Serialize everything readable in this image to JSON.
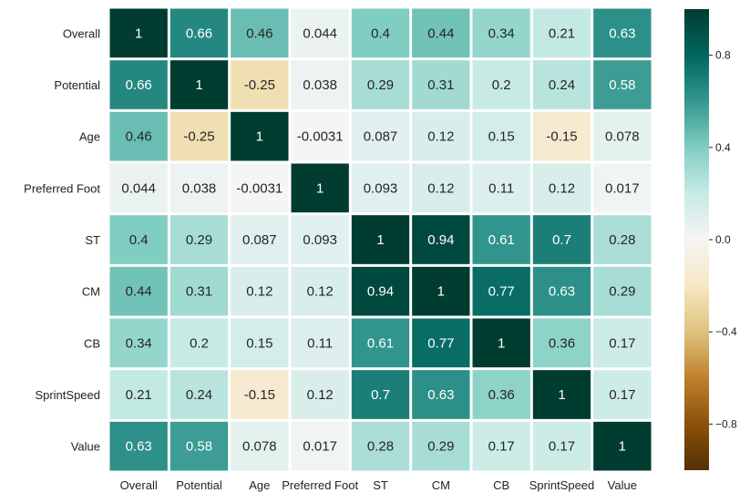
{
  "chart_data": {
    "type": "heatmap",
    "title": "",
    "xlabel": "",
    "ylabel": "",
    "x_labels": [
      "Overall",
      "Potential",
      "Age",
      "Preferred Foot",
      "ST",
      "CM",
      "CB",
      "SprintSpeed",
      "Value"
    ],
    "y_labels": [
      "Overall",
      "Potential",
      "Age",
      "Preferred Foot",
      "ST",
      "CM",
      "CB",
      "SprintSpeed",
      "Value"
    ],
    "cell_labels": [
      [
        "1",
        "0.66",
        "0.46",
        "0.044",
        "0.4",
        "0.44",
        "0.34",
        "0.21",
        "0.63"
      ],
      [
        "0.66",
        "1",
        "-0.25",
        "0.038",
        "0.29",
        "0.31",
        "0.2",
        "0.24",
        "0.58"
      ],
      [
        "0.46",
        "-0.25",
        "1",
        "-0.0031",
        "0.087",
        "0.12",
        "0.15",
        "-0.15",
        "0.078"
      ],
      [
        "0.044",
        "0.038",
        "-0.0031",
        "1",
        "0.093",
        "0.12",
        "0.11",
        "0.12",
        "0.017"
      ],
      [
        "0.4",
        "0.29",
        "0.087",
        "0.093",
        "1",
        "0.94",
        "0.61",
        "0.7",
        "0.28"
      ],
      [
        "0.44",
        "0.31",
        "0.12",
        "0.12",
        "0.94",
        "1",
        "0.77",
        "0.63",
        "0.29"
      ],
      [
        "0.34",
        "0.2",
        "0.15",
        "0.11",
        "0.61",
        "0.77",
        "1",
        "0.36",
        "0.17"
      ],
      [
        "0.21",
        "0.24",
        "-0.15",
        "0.12",
        "0.7",
        "0.63",
        "0.36",
        "1",
        "0.17"
      ],
      [
        "0.63",
        "0.58",
        "0.078",
        "0.017",
        "0.28",
        "0.29",
        "0.17",
        "0.17",
        "1"
      ]
    ],
    "colormap": "BrBG",
    "vmin": -1,
    "vmax": 1,
    "colorbar_ticks": [
      "0.8",
      "0.4",
      "0.0",
      "−0.4",
      "−0.8"
    ],
    "colorbar_tick_values": [
      0.8,
      0.4,
      0,
      -0.4,
      -0.8
    ],
    "colors": {
      "min": "#543005",
      "mid": "#f5f5f5",
      "max": "#003c30",
      "cell_border": "#ffffff"
    },
    "grid": false,
    "legend": "colorbar-right"
  }
}
